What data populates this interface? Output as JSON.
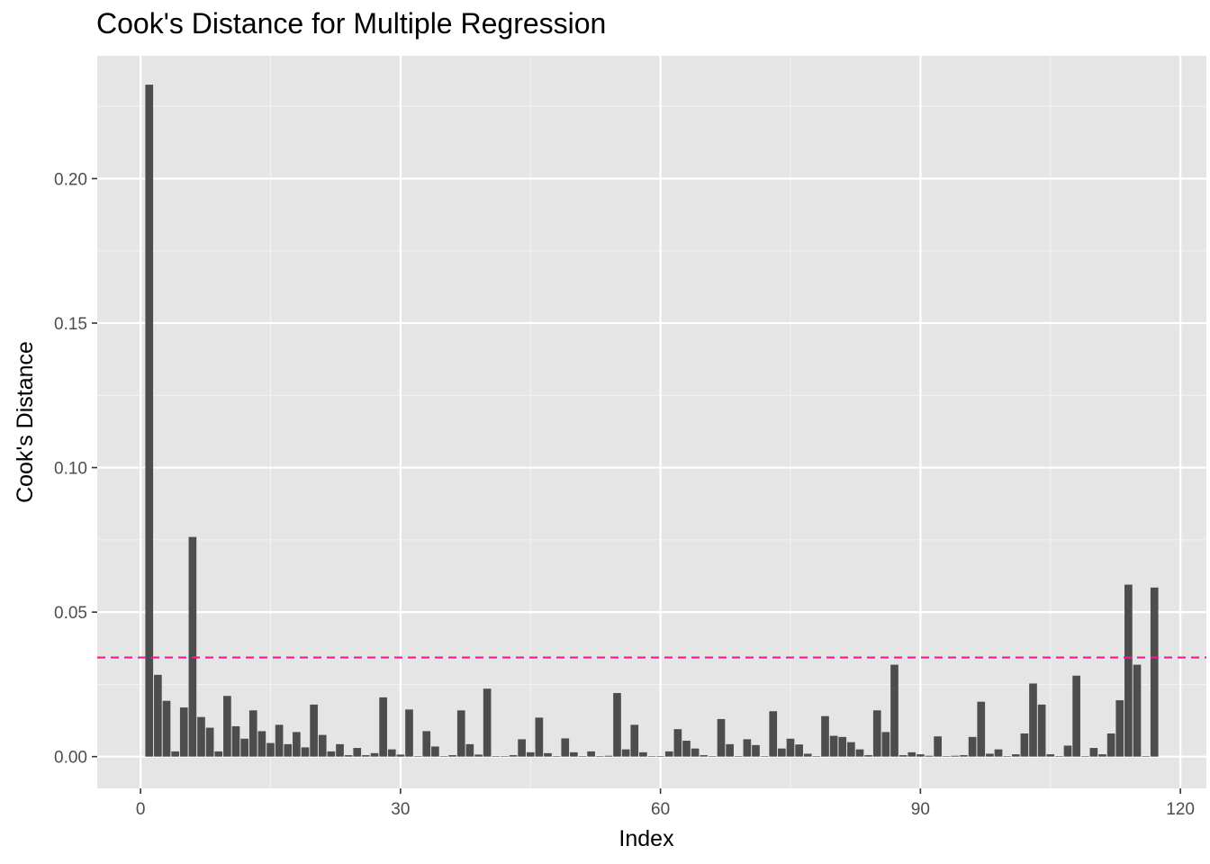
{
  "chart_data": {
    "type": "bar",
    "title": "Cook's Distance for Multiple Regression",
    "xlabel": "Index",
    "ylabel": "Cook's Distance",
    "xlim": [
      -5,
      123
    ],
    "ylim": [
      -0.011,
      0.2425
    ],
    "x_ticks": [
      0,
      30,
      60,
      90,
      120
    ],
    "x_tick_labels": [
      "0",
      "30",
      "60",
      "90",
      "120"
    ],
    "y_ticks": [
      0.0,
      0.05,
      0.1,
      0.15,
      0.2
    ],
    "y_tick_labels": [
      "0.00",
      "0.05",
      "0.10",
      "0.15",
      "0.20"
    ],
    "grid": true,
    "threshold": {
      "value": 0.0343,
      "color": "#ff1493",
      "style": "dashed"
    },
    "bar_color": "#4d4d4d",
    "panel_background": "#e5e5e5",
    "x": [
      1,
      2,
      3,
      4,
      5,
      6,
      7,
      8,
      9,
      10,
      11,
      12,
      13,
      14,
      15,
      16,
      17,
      18,
      19,
      20,
      21,
      22,
      23,
      24,
      25,
      26,
      27,
      28,
      29,
      30,
      31,
      32,
      33,
      34,
      35,
      36,
      37,
      38,
      39,
      40,
      41,
      42,
      43,
      44,
      45,
      46,
      47,
      48,
      49,
      50,
      51,
      52,
      53,
      54,
      55,
      56,
      57,
      58,
      59,
      60,
      61,
      62,
      63,
      64,
      65,
      66,
      67,
      68,
      69,
      70,
      71,
      72,
      73,
      74,
      75,
      76,
      77,
      78,
      79,
      80,
      81,
      82,
      83,
      84,
      85,
      86,
      87,
      88,
      89,
      90,
      91,
      92,
      93,
      94,
      95,
      96,
      97,
      98,
      99,
      100,
      101,
      102,
      103,
      104,
      105,
      106,
      107,
      108,
      109,
      110,
      111,
      112,
      113,
      114,
      115,
      116,
      117
    ],
    "values": [
      0.2325,
      0.0283,
      0.0193,
      0.0018,
      0.017,
      0.076,
      0.0137,
      0.01,
      0.0018,
      0.021,
      0.0105,
      0.0062,
      0.016,
      0.0088,
      0.0047,
      0.011,
      0.0043,
      0.0085,
      0.0032,
      0.018,
      0.0075,
      0.0018,
      0.0043,
      0.0005,
      0.003,
      0.0005,
      0.0012,
      0.0205,
      0.0025,
      0.0007,
      0.0163,
      0.0001,
      0.0088,
      0.0035,
      0.0001,
      0.0005,
      0.016,
      0.0043,
      0.0007,
      0.0235,
      0.0001,
      0.0001,
      0.0005,
      0.006,
      0.0015,
      0.0135,
      0.0012,
      0.0001,
      0.0063,
      0.0015,
      0.0001,
      0.0018,
      0.0001,
      0.0003,
      0.022,
      0.0025,
      0.011,
      0.0015,
      0.0001,
      0.0001,
      0.0018,
      0.0095,
      0.0055,
      0.0028,
      0.0005,
      0.0001,
      0.013,
      0.0043,
      0.0001,
      0.006,
      0.004,
      0.0001,
      0.0157,
      0.0028,
      0.0062,
      0.0042,
      0.001,
      0.0001,
      0.014,
      0.0072,
      0.0068,
      0.005,
      0.0025,
      0.0005,
      0.016,
      0.0085,
      0.0318,
      0.0005,
      0.0015,
      0.0008,
      0.0003,
      0.007,
      0.0001,
      0.0003,
      0.0005,
      0.0068,
      0.019,
      0.001,
      0.0025,
      0.0001,
      0.0008,
      0.008,
      0.0253,
      0.018,
      0.0008,
      0.0001,
      0.0038,
      0.028,
      0.0001,
      0.003,
      0.0008,
      0.008,
      0.0195,
      0.0595,
      0.0318,
      0.0001,
      0.0585
    ]
  }
}
